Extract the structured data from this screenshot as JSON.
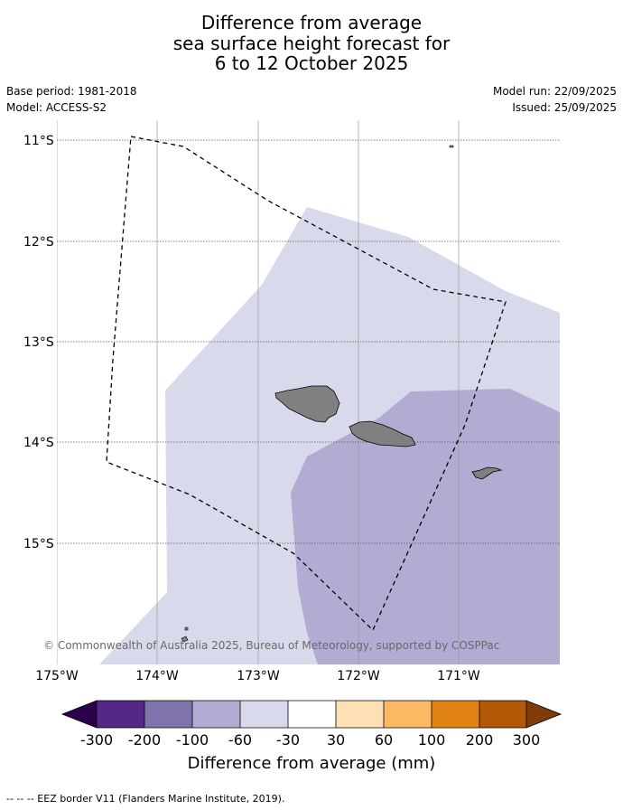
{
  "title": {
    "line1": "Difference from average",
    "line2": "sea surface height forecast for",
    "line3": "6 to 12 October 2025"
  },
  "meta": {
    "base_period": "Base period: 1981-2018",
    "model": "Model: ACCESS-S2",
    "model_run": "Model run: 22/09/2025",
    "issued": "Issued: 25/09/2025"
  },
  "axes": {
    "x_ticks": [
      "175°W",
      "174°W",
      "173°W",
      "172°W",
      "171°W"
    ],
    "y_ticks": [
      "11°S",
      "12°S",
      "13°S",
      "14°S",
      "15°S"
    ]
  },
  "colorbar": {
    "label": "Difference from average (mm)",
    "ticks": [
      "-300",
      "-200",
      "-100",
      "-60",
      "-30",
      "30",
      "60",
      "100",
      "200",
      "300"
    ],
    "colors": [
      "#2d004b",
      "#542788",
      "#8073ac",
      "#b2abd2",
      "#d8daeb",
      "#ffffff",
      "#fee0b6",
      "#fdb863",
      "#e08214",
      "#b35806",
      "#7f3b08"
    ]
  },
  "credit": "© Commonwealth of Australia 2025, Bureau of Meteorology, supported by COSPPac",
  "legend_eez": "--  --  -- EEZ border V11 (Flanders Marine Institute, 2019)."
}
